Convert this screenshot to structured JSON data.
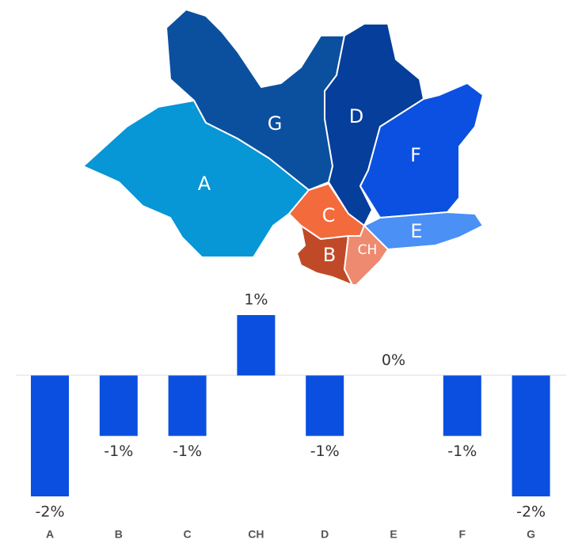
{
  "map": {
    "regions": [
      {
        "label": "A",
        "color": "#0796d6"
      },
      {
        "label": "G",
        "color": "#0b509f"
      },
      {
        "label": "D",
        "color": "#053e9b"
      },
      {
        "label": "F",
        "color": "#0b50e0"
      },
      {
        "label": "E",
        "color": "#4a90f5"
      },
      {
        "label": "C",
        "color": "#f36a3c"
      },
      {
        "label": "B",
        "color": "#c04a27"
      },
      {
        "label": "CH",
        "color": "#ee8a70"
      }
    ]
  },
  "chart_data": {
    "type": "bar",
    "categories": [
      "A",
      "B",
      "C",
      "CH",
      "D",
      "E",
      "F",
      "G"
    ],
    "values": [
      -2,
      -1,
      -1,
      1,
      -1,
      0,
      -1,
      -2
    ],
    "value_labels": [
      "-2%",
      "-1%",
      "-1%",
      "1%",
      "-1%",
      "0%",
      "-1%",
      "-2%"
    ],
    "color": "#0a4fe0",
    "ylim": [
      -2,
      1
    ]
  }
}
